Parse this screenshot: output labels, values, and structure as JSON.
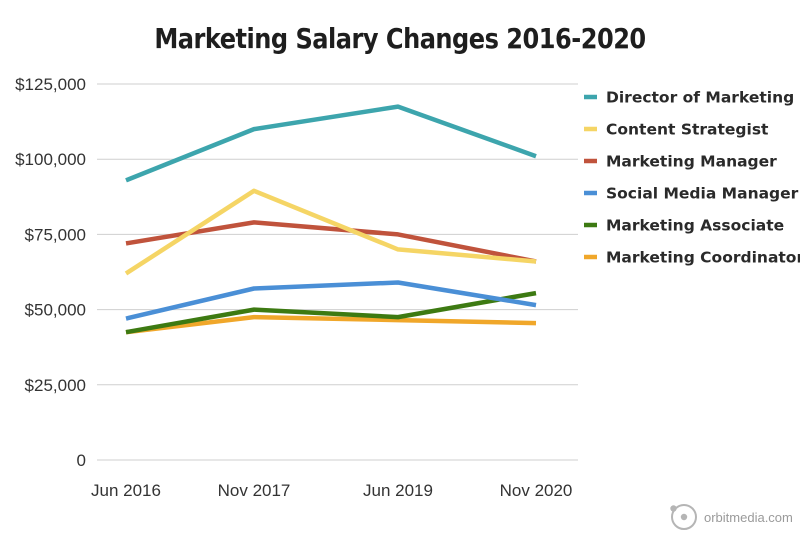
{
  "chart_data": {
    "type": "line",
    "title": "Marketing Salary Changes 2016-2020",
    "xlabel": "",
    "ylabel": "",
    "x": [
      "Jun 2016",
      "Nov 2017",
      "Jun 2019",
      "Nov 2020"
    ],
    "ylim": [
      0,
      125000
    ],
    "yticks": [
      0,
      25000,
      50000,
      75000,
      100000,
      125000
    ],
    "ytick_labels": [
      "0",
      "$25,000",
      "$50,000",
      "$75,000",
      "$100,000",
      "$125,000"
    ],
    "grid": "horizontal",
    "legend_position": "right",
    "series": [
      {
        "name": "Director of Marketing",
        "color": "#3da5ad",
        "values": [
          93000,
          110000,
          117500,
          101000
        ]
      },
      {
        "name": "Content Strategist",
        "color": "#f5d565",
        "values": [
          62000,
          89500,
          70000,
          66000
        ]
      },
      {
        "name": "Marketing Manager",
        "color": "#c0533c",
        "values": [
          72000,
          79000,
          75000,
          66000
        ]
      },
      {
        "name": "Social Media Manager",
        "color": "#4a8fd6",
        "values": [
          47000,
          57000,
          59000,
          51500
        ]
      },
      {
        "name": "Marketing Associate",
        "color": "#3d7a12",
        "values": [
          42500,
          50000,
          47500,
          55500
        ]
      },
      {
        "name": "Marketing Coordinator",
        "color": "#f0a72a",
        "values": [
          42500,
          47500,
          46500,
          45500
        ]
      }
    ]
  },
  "watermark": {
    "text": "orbitmedia.com",
    "icon": "orbit-logo-icon"
  }
}
